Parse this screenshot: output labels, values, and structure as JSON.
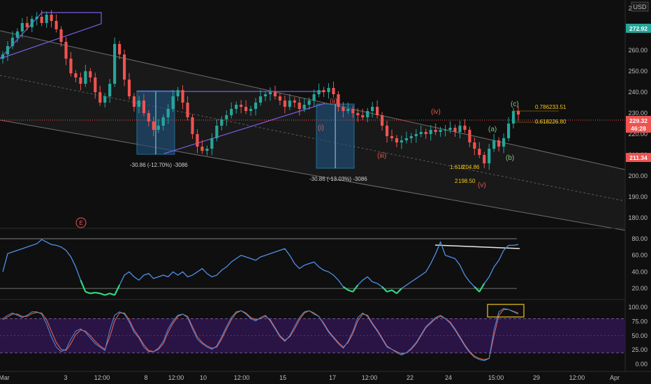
{
  "colors": {
    "background": "#0f0f0f",
    "up": "#26a69a",
    "down": "#ef5350",
    "rsi": "#4e8fe6",
    "rsi_oversold": "#30d97d",
    "stoch_k": "#4e8fe6",
    "stoch_d": "#ef6a4a",
    "stoch_band": "#2a1446",
    "fib": "#f0c419",
    "wave_red": "#e0584f",
    "wave_green": "#7ec77e",
    "rect": "#2a9fd6",
    "trend": "#7b5ce6"
  },
  "chart_data": [
    {
      "type": "candlestick",
      "pane": "price",
      "currency": "USD",
      "y_ticks": [
        180,
        190,
        200,
        210,
        220,
        230,
        240,
        250,
        260,
        270,
        280
      ],
      "ylim": [
        175,
        284
      ],
      "x_tick_labels": [
        "Mar",
        "3",
        "12:00",
        "8",
        "12:00",
        "10",
        "12:00",
        "15",
        "17",
        "12:00",
        "22",
        "24",
        "15:00",
        "29",
        "12:00",
        "Apr"
      ],
      "close": [
        258,
        262,
        266,
        269,
        273,
        271,
        275,
        276,
        273,
        277,
        274,
        270,
        264,
        256,
        249,
        247,
        244,
        250,
        247,
        240,
        235,
        238,
        244,
        263,
        258,
        246,
        238,
        233,
        236,
        230,
        226,
        222,
        224,
        228,
        232,
        238,
        241,
        235,
        228,
        220,
        214,
        212,
        213,
        218,
        224,
        227,
        229,
        232,
        234,
        233,
        231,
        232,
        235,
        238,
        239,
        240,
        238,
        236,
        233,
        236,
        235,
        232,
        234,
        236,
        239,
        241,
        240,
        242,
        239,
        233,
        231,
        232,
        230,
        229,
        228,
        231,
        233,
        229,
        224,
        219,
        218,
        216,
        217,
        218,
        219,
        220,
        221,
        220,
        222,
        221,
        222,
        222,
        223,
        221,
        224,
        222,
        216,
        213,
        210,
        206,
        213,
        217,
        214,
        218,
        225,
        231,
        229.32
      ],
      "last_price": 229.32,
      "price_labels": [
        "272.92",
        "229.32",
        "211.34"
      ],
      "countdown": "46:28",
      "annotations": {
        "waves_red": [
          "(i)",
          "(ii)",
          "(iii)",
          "(iv)",
          "(v)"
        ],
        "waves_green": [
          "(a)",
          "(b)",
          "(c)"
        ],
        "fib_levels": [
          {
            "ratio": "0.786",
            "value": "233.51"
          },
          {
            "ratio": "0.618",
            "value": "226.80"
          },
          {
            "ratio": "1.618",
            "value": "204.86"
          },
          {
            "ratio": "2",
            "value": "198.50"
          }
        ],
        "measure_1": "-30.86 (-12.70%) -3086",
        "measure_2": "-30.86 (-13.03%) -3086",
        "event_marker": "E"
      }
    },
    {
      "type": "line",
      "pane": "rsi",
      "name": "",
      "y_ticks": [
        20,
        40,
        60,
        80
      ],
      "ylim": [
        10,
        85
      ],
      "guide_levels": [
        80,
        20
      ],
      "values": [
        40,
        62,
        64,
        66,
        68,
        70,
        72,
        74,
        79,
        76,
        73,
        72,
        70,
        66,
        58,
        46,
        30,
        16,
        14,
        15,
        14,
        12,
        14,
        12,
        24,
        36,
        40,
        34,
        30,
        36,
        38,
        32,
        34,
        36,
        34,
        40,
        36,
        40,
        34,
        36,
        40,
        44,
        38,
        34,
        36,
        42,
        46,
        52,
        56,
        60,
        58,
        56,
        54,
        58,
        60,
        62,
        64,
        66,
        68,
        60,
        50,
        44,
        48,
        50,
        52,
        46,
        42,
        40,
        36,
        30,
        22,
        18,
        16,
        24,
        30,
        34,
        28,
        26,
        22,
        16,
        18,
        14,
        20,
        24,
        28,
        32,
        36,
        40,
        50,
        62,
        76,
        60,
        58,
        56,
        48,
        36,
        28,
        22,
        16,
        26,
        34,
        46,
        54,
        66,
        72,
        72,
        73
      ]
    },
    {
      "type": "line",
      "pane": "stoch",
      "y_ticks": [
        "0.00",
        "25.00",
        "50.00",
        "75.00",
        "100.00"
      ],
      "ylim": [
        -8,
        110
      ],
      "band": [
        20,
        80
      ],
      "k": [
        80,
        86,
        90,
        86,
        82,
        86,
        92,
        92,
        88,
        70,
        48,
        30,
        22,
        26,
        44,
        58,
        62,
        56,
        46,
        36,
        30,
        24,
        60,
        86,
        92,
        88,
        74,
        56,
        46,
        30,
        22,
        22,
        28,
        40,
        62,
        76,
        86,
        88,
        82,
        62,
        44,
        36,
        30,
        26,
        32,
        48,
        66,
        82,
        92,
        94,
        88,
        80,
        76,
        82,
        86,
        76,
        62,
        48,
        40,
        50,
        66,
        82,
        92,
        94,
        88,
        84,
        70,
        56,
        46,
        36,
        28,
        40,
        58,
        82,
        90,
        84,
        70,
        58,
        44,
        30,
        26,
        20,
        16,
        20,
        28,
        38,
        52,
        66,
        74,
        82,
        86,
        80,
        72,
        60,
        46,
        32,
        20,
        12,
        8,
        6,
        10,
        60,
        92,
        98,
        96,
        92,
        88
      ],
      "d": [
        78,
        83,
        88,
        88,
        84,
        84,
        89,
        91,
        90,
        78,
        58,
        38,
        26,
        24,
        36,
        52,
        60,
        58,
        50,
        40,
        32,
        26,
        48,
        76,
        90,
        90,
        78,
        60,
        48,
        34,
        24,
        22,
        26,
        36,
        56,
        72,
        84,
        88,
        84,
        66,
        48,
        38,
        32,
        28,
        30,
        44,
        62,
        78,
        90,
        94,
        90,
        82,
        78,
        80,
        84,
        78,
        64,
        50,
        42,
        48,
        62,
        78,
        90,
        94,
        90,
        84,
        72,
        58,
        48,
        38,
        30,
        38,
        54,
        76,
        88,
        86,
        72,
        60,
        46,
        32,
        26,
        22,
        18,
        20,
        26,
        36,
        50,
        64,
        72,
        80,
        84,
        80,
        74,
        62,
        48,
        34,
        22,
        14,
        10,
        8,
        10,
        50,
        86,
        96,
        96,
        93,
        90
      ]
    }
  ]
}
